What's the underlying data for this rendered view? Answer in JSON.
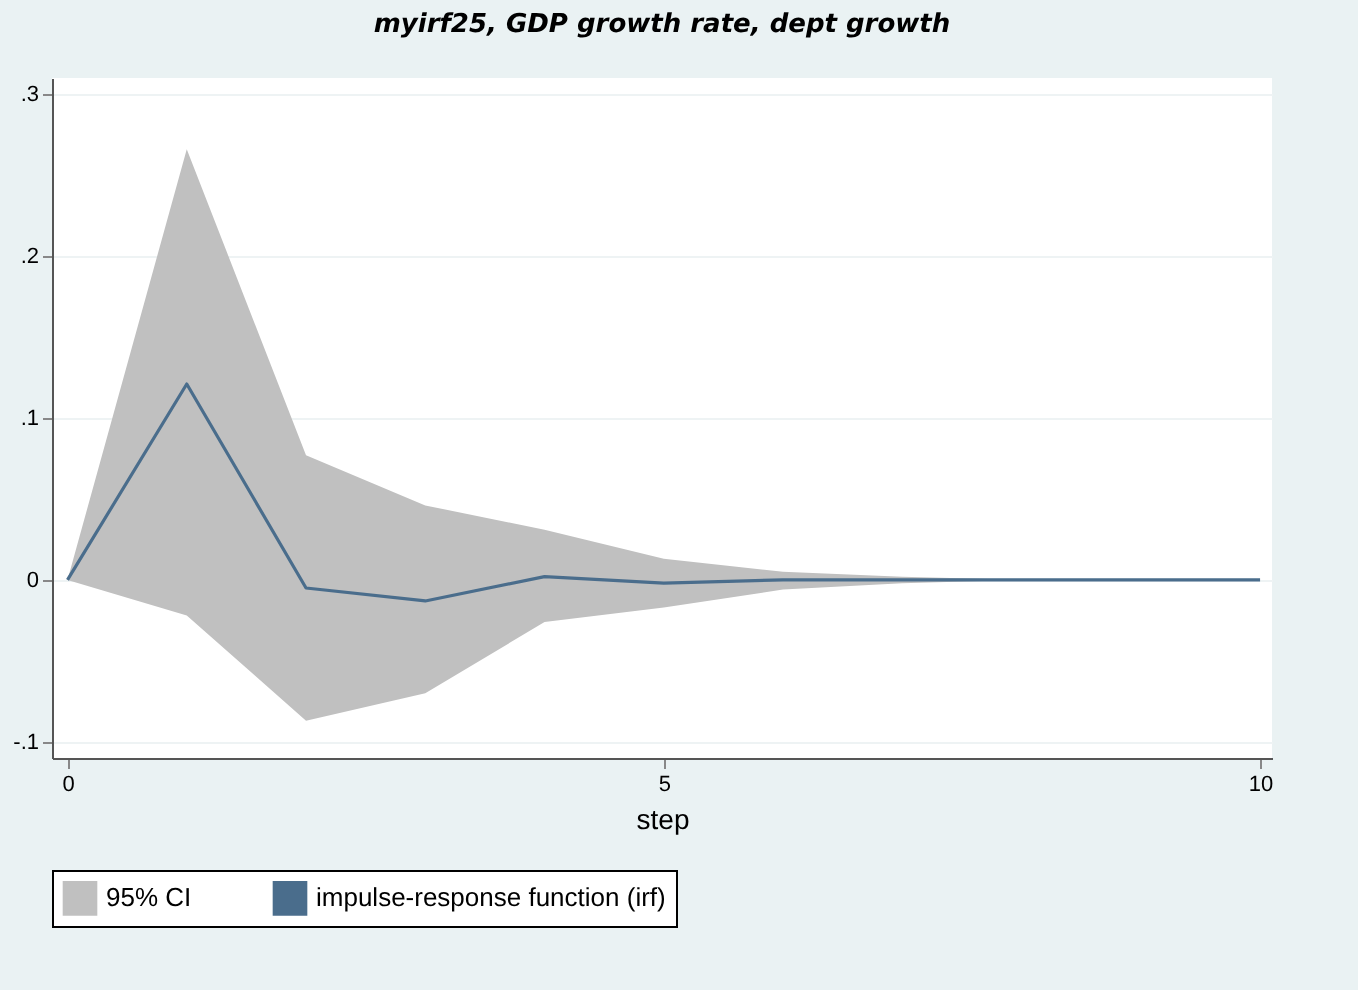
{
  "chart_data": {
    "type": "line",
    "title": "myirf25, GDP growth rate, dept growth",
    "xlabel": "step",
    "x": [
      0,
      1,
      2,
      3,
      4,
      5,
      6,
      7,
      8,
      9,
      10
    ],
    "series": [
      {
        "name": "impulse-response function (irf)",
        "type": "line",
        "color": "#4a6d8c",
        "values": [
          0,
          0.121,
          -0.005,
          -0.013,
          0.002,
          -0.002,
          0,
          0,
          0,
          0,
          0
        ],
        "lower": [
          0,
          -0.022,
          -0.087,
          -0.07,
          -0.026,
          -0.017,
          -0.006,
          -0.002,
          0,
          0,
          0
        ],
        "upper": [
          0,
          0.266,
          0.077,
          0.046,
          0.031,
          0.013,
          0.005,
          0.002,
          0,
          0,
          0
        ]
      }
    ],
    "xlim": [
      -0.13,
      10.1
    ],
    "ylim": [
      -0.11,
      0.31
    ],
    "xticks": [
      0,
      5,
      10
    ],
    "yticks": [
      {
        "value": -0.1,
        "label": "-.1"
      },
      {
        "value": 0,
        "label": "0"
      },
      {
        "value": 0.1,
        "label": ".1"
      },
      {
        "value": 0.2,
        "label": ".2"
      },
      {
        "value": 0.3,
        "label": ".3"
      }
    ],
    "annotations": [
      "95% CI"
    ],
    "grid": "y",
    "legend": "bottom",
    "marker": "none",
    "line_style": "solid"
  }
}
